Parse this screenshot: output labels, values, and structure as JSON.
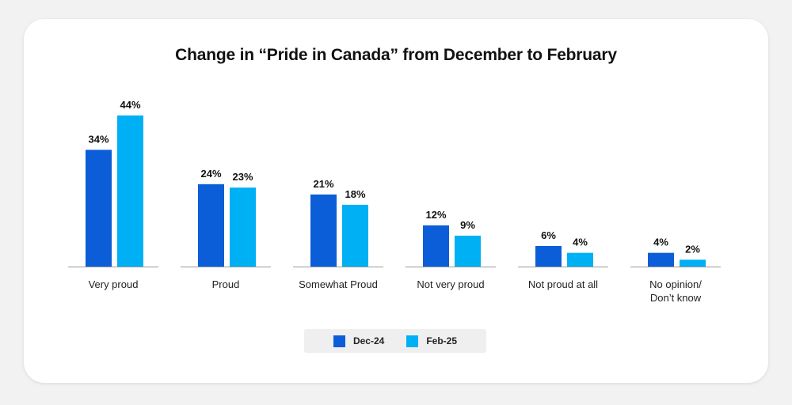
{
  "chart_data": {
    "type": "bar",
    "title": "Change in “Pride in Canada” from December to February",
    "categories": [
      "Very proud",
      "Proud",
      "Somewhat Proud",
      "Not very proud",
      "Not proud at all",
      "No opinion/\nDon’t know"
    ],
    "series": [
      {
        "name": "Dec-24",
        "values": [
          34,
          24,
          21,
          12,
          6,
          4
        ],
        "labels": [
          "34%",
          "24%",
          "21%",
          "12%",
          "6%",
          "4%"
        ],
        "color": "#0b5ed7"
      },
      {
        "name": "Feb-25",
        "values": [
          44,
          23,
          18,
          9,
          4,
          2
        ],
        "labels": [
          "44%",
          "23%",
          "18%",
          "9%",
          "4%",
          "2%"
        ],
        "color": "#00b0f4"
      }
    ],
    "ylim": [
      0,
      44
    ],
    "xlabel": "",
    "ylabel": "",
    "legend_position": "bottom",
    "grid": false
  }
}
